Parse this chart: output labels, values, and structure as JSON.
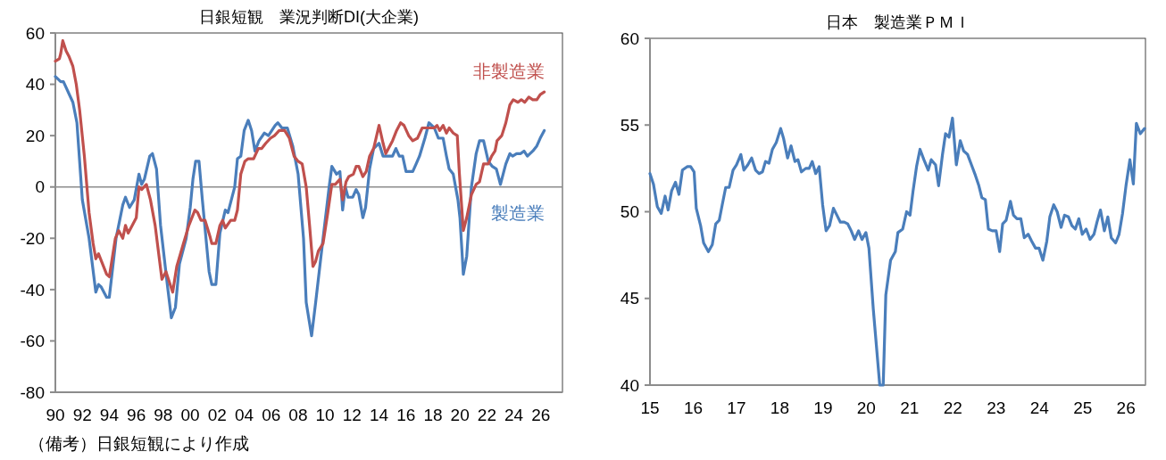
{
  "chart_data": [
    {
      "type": "line",
      "title": "日銀短観　業況判断DI(大企業)",
      "xlim": [
        1990,
        2027.6
      ],
      "ylim": [
        -80,
        60
      ],
      "xticks": [
        {
          "value": 1990,
          "label": "90"
        },
        {
          "value": 1992,
          "label": "92"
        },
        {
          "value": 1994,
          "label": "94"
        },
        {
          "value": 1996,
          "label": "96"
        },
        {
          "value": 1998,
          "label": "98"
        },
        {
          "value": 2000,
          "label": "00"
        },
        {
          "value": 2002,
          "label": "02"
        },
        {
          "value": 2004,
          "label": "04"
        },
        {
          "value": 2006,
          "label": "06"
        },
        {
          "value": 2008,
          "label": "08"
        },
        {
          "value": 2010,
          "label": "10"
        },
        {
          "value": 2012,
          "label": "12"
        },
        {
          "value": 2014,
          "label": "14"
        },
        {
          "value": 2016,
          "label": "16"
        },
        {
          "value": 2018,
          "label": "18"
        },
        {
          "value": 2020,
          "label": "20"
        },
        {
          "value": 2022,
          "label": "22"
        },
        {
          "value": 2024,
          "label": "24"
        },
        {
          "value": 2026,
          "label": "26"
        }
      ],
      "yticks": [
        -80,
        -60,
        -40,
        -20,
        0,
        20,
        40,
        60
      ],
      "grid": false,
      "legend": false,
      "marker": "none",
      "line_style": "solid",
      "ref_lines": [
        {
          "axis": "y",
          "value": 0,
          "color": "#8c8c8c"
        }
      ],
      "annotations": [
        "（備考）日銀短観により作成"
      ],
      "series": [
        {
          "name": "製造業",
          "color": "#4a7ebb",
          "x": [
            1990.0,
            1990.4,
            1990.6,
            1991.3,
            1991.6,
            1992.0,
            1992.5,
            1993.0,
            1993.2,
            1993.4,
            1993.8,
            1994.0,
            1994.5,
            1995.0,
            1995.2,
            1995.5,
            1995.85,
            1996.2,
            1996.4,
            1996.6,
            1997.0,
            1997.2,
            1997.5,
            1997.8,
            1998.3,
            1998.6,
            1998.9,
            1999.2,
            1999.7,
            2000.0,
            2000.2,
            2000.4,
            2000.65,
            2000.9,
            2001.4,
            2001.6,
            2001.9,
            2002.2,
            2002.6,
            2002.8,
            2003.3,
            2003.5,
            2003.75,
            2004.0,
            2004.3,
            2004.55,
            2004.8,
            2005.1,
            2005.5,
            2005.8,
            2006.3,
            2006.5,
            2006.8,
            2007.2,
            2007.6,
            2008.0,
            2008.4,
            2008.6,
            2009.0,
            2009.3,
            2009.85,
            2010.3,
            2010.5,
            2010.85,
            2011.1,
            2011.3,
            2011.5,
            2011.7,
            2012.05,
            2012.3,
            2012.5,
            2012.8,
            2013.0,
            2013.3,
            2013.6,
            2014.0,
            2014.3,
            2014.6,
            2015.0,
            2015.25,
            2015.5,
            2015.75,
            2016.0,
            2016.5,
            2016.75,
            2017.0,
            2017.4,
            2017.7,
            2018.1,
            2018.4,
            2018.75,
            2019.0,
            2019.2,
            2019.5,
            2019.85,
            2020.0,
            2020.25,
            2020.5,
            2020.85,
            2021.2,
            2021.45,
            2021.75,
            2022.1,
            2022.4,
            2022.7,
            2023.0,
            2023.4,
            2023.7,
            2023.9,
            2024.2,
            2024.5,
            2024.75,
            2025.0,
            2025.4,
            2025.7,
            2025.95,
            2026.25
          ],
          "values": [
            43,
            41,
            41,
            33,
            25,
            -5,
            -20,
            -41,
            -38,
            -39,
            -43,
            -43,
            -20,
            -7,
            -4,
            -8,
            -5,
            5,
            1,
            3,
            12,
            13,
            7,
            -15,
            -38,
            -51,
            -47,
            -30,
            -20,
            -8,
            3,
            10,
            10,
            -5,
            -33,
            -38,
            -38,
            -18,
            -9,
            -10,
            0,
            11,
            12,
            22,
            26,
            22,
            14,
            18,
            21,
            20,
            24,
            25,
            23,
            23,
            16,
            5,
            -20,
            -45,
            -58,
            -45,
            -20,
            0,
            8,
            5,
            6,
            -9,
            0,
            -4,
            -4,
            -1,
            -3,
            -12,
            -8,
            7,
            15,
            17,
            12,
            12,
            12,
            15,
            12,
            12,
            6,
            6,
            9,
            12,
            19,
            25,
            23,
            19,
            19,
            12,
            7,
            5,
            -5,
            -12,
            -34,
            -27,
            0,
            13,
            18,
            18,
            10,
            8,
            7,
            1,
            9,
            13,
            12,
            13,
            13,
            14,
            12,
            14,
            16,
            19,
            22
          ]
        },
        {
          "name": "非製造業",
          "color": "#c0504d",
          "x": [
            1990.0,
            1990.3,
            1990.4,
            1990.55,
            1990.8,
            1991.0,
            1991.3,
            1991.55,
            1991.8,
            1992.15,
            1992.5,
            1992.8,
            1993.0,
            1993.2,
            1993.5,
            1993.8,
            1994.0,
            1994.45,
            1994.7,
            1995.0,
            1995.2,
            1995.4,
            1996.0,
            1996.2,
            1996.4,
            1996.75,
            1997.05,
            1997.4,
            1997.9,
            1998.2,
            1998.7,
            1999.0,
            1999.5,
            1999.9,
            2000.35,
            2000.55,
            2000.8,
            2001.1,
            2001.45,
            2001.6,
            2001.9,
            2002.2,
            2002.4,
            2002.6,
            2003.0,
            2003.3,
            2003.5,
            2003.75,
            2004.05,
            2004.3,
            2004.7,
            2005.05,
            2005.3,
            2005.6,
            2005.95,
            2006.25,
            2006.6,
            2007.0,
            2007.35,
            2007.7,
            2008.0,
            2008.3,
            2008.6,
            2008.85,
            2009.1,
            2009.3,
            2009.5,
            2009.85,
            2010.2,
            2010.5,
            2010.75,
            2011.1,
            2011.3,
            2011.55,
            2011.75,
            2012.1,
            2012.3,
            2012.5,
            2012.8,
            2013.05,
            2013.3,
            2013.6,
            2014.0,
            2014.3,
            2014.5,
            2015.0,
            2015.3,
            2015.6,
            2015.85,
            2016.2,
            2016.5,
            2016.85,
            2017.2,
            2017.6,
            2018.1,
            2018.3,
            2018.5,
            2018.75,
            2019.0,
            2019.2,
            2019.5,
            2019.8,
            2019.96,
            2020.25,
            2020.5,
            2020.85,
            2021.2,
            2021.45,
            2021.75,
            2022.1,
            2022.35,
            2022.6,
            2022.75,
            2023.1,
            2023.4,
            2023.7,
            2023.95,
            2024.3,
            2024.55,
            2024.8,
            2025.1,
            2025.4,
            2025.7,
            2025.95,
            2026.25
          ],
          "values": [
            49,
            50,
            52,
            57,
            53,
            51,
            47,
            40,
            30,
            12,
            -10,
            -22,
            -28,
            -26,
            -30,
            -34,
            -35,
            -20,
            -17,
            -20,
            -15,
            -18,
            -12,
            0,
            -1,
            1,
            -5,
            -15,
            -36,
            -33,
            -41,
            -31,
            -22,
            -15,
            -9,
            -10,
            -13,
            -13,
            -19,
            -22,
            -22,
            -15,
            -13,
            -16,
            -13,
            -13,
            -9,
            5,
            10,
            11,
            11,
            15,
            15,
            17,
            19,
            20,
            22,
            22,
            19,
            12,
            10,
            9,
            0,
            -15,
            -31,
            -29,
            -25,
            -22,
            -10,
            1,
            1,
            3,
            -5,
            2,
            4,
            5,
            8,
            8,
            4,
            6,
            12,
            15,
            24,
            17,
            13,
            18,
            22,
            25,
            24,
            20,
            18,
            19,
            23,
            23,
            23,
            24,
            22,
            24,
            21,
            23,
            21,
            20,
            5,
            -17,
            -12,
            -3,
            1,
            2,
            9,
            9,
            12,
            14,
            18,
            20,
            25,
            32,
            34,
            33,
            34,
            33,
            35,
            34,
            34,
            36,
            37
          ]
        }
      ]
    },
    {
      "type": "line",
      "title": "日本　製造業ＰＭＩ",
      "xlim": [
        2015,
        2026.45
      ],
      "ylim": [
        40,
        60
      ],
      "xticks": [
        {
          "value": 2015,
          "label": "15"
        },
        {
          "value": 2016,
          "label": "16"
        },
        {
          "value": 2017,
          "label": "17"
        },
        {
          "value": 2018,
          "label": "18"
        },
        {
          "value": 2019,
          "label": "19"
        },
        {
          "value": 2020,
          "label": "20"
        },
        {
          "value": 2021,
          "label": "21"
        },
        {
          "value": 2022,
          "label": "22"
        },
        {
          "value": 2023,
          "label": "23"
        },
        {
          "value": 2024,
          "label": "24"
        },
        {
          "value": 2025,
          "label": "25"
        },
        {
          "value": 2026,
          "label": "26"
        }
      ],
      "yticks": [
        40,
        45,
        50,
        55,
        60
      ],
      "grid": false,
      "legend": false,
      "marker": "none",
      "line_style": "solid",
      "series": [
        {
          "color": "#4a7ebb",
          "x": [
            2015.0,
            2015.08,
            2015.17,
            2015.26,
            2015.35,
            2015.42,
            2015.5,
            2015.59,
            2015.67,
            2015.75,
            2015.86,
            2015.94,
            2016.02,
            2016.07,
            2016.17,
            2016.24,
            2016.35,
            2016.44,
            2016.52,
            2016.6,
            2016.67,
            2016.75,
            2016.83,
            2016.92,
            2017.0,
            2017.1,
            2017.17,
            2017.26,
            2017.35,
            2017.44,
            2017.52,
            2017.6,
            2017.67,
            2017.75,
            2017.83,
            2017.92,
            2018.02,
            2018.09,
            2018.18,
            2018.26,
            2018.35,
            2018.42,
            2018.5,
            2018.6,
            2018.68,
            2018.75,
            2018.83,
            2018.91,
            2018.99,
            2019.07,
            2019.15,
            2019.24,
            2019.32,
            2019.4,
            2019.49,
            2019.57,
            2019.65,
            2019.73,
            2019.82,
            2019.9,
            2019.99,
            2020.06,
            2020.16,
            2020.31,
            2020.39,
            2020.45,
            2020.56,
            2020.67,
            2020.73,
            2020.84,
            2020.93,
            2021.01,
            2021.08,
            2021.16,
            2021.24,
            2021.33,
            2021.43,
            2021.5,
            2021.6,
            2021.67,
            2021.76,
            2021.83,
            2021.91,
            2021.99,
            2022.08,
            2022.17,
            2022.25,
            2022.34,
            2022.43,
            2022.52,
            2022.6,
            2022.67,
            2022.75,
            2022.82,
            2022.91,
            2023.0,
            2023.08,
            2023.15,
            2023.23,
            2023.33,
            2023.4,
            2023.48,
            2023.57,
            2023.65,
            2023.74,
            2023.82,
            2023.91,
            2023.99,
            2024.08,
            2024.17,
            2024.24,
            2024.33,
            2024.41,
            2024.5,
            2024.58,
            2024.67,
            2024.75,
            2024.83,
            2024.91,
            2024.99,
            2025.08,
            2025.17,
            2025.26,
            2025.33,
            2025.41,
            2025.5,
            2025.58,
            2025.66,
            2025.76,
            2025.84,
            2025.92,
            2026.0,
            2026.09,
            2026.17,
            2026.24,
            2026.33,
            2026.43
          ],
          "values": [
            52.2,
            51.6,
            50.3,
            49.9,
            50.9,
            50.1,
            51.2,
            51.7,
            51.0,
            52.4,
            52.6,
            52.6,
            52.3,
            50.2,
            49.2,
            48.2,
            47.7,
            48.1,
            49.3,
            49.5,
            50.4,
            51.4,
            51.4,
            52.4,
            52.7,
            53.3,
            52.4,
            52.7,
            53.1,
            52.4,
            52.2,
            52.3,
            52.9,
            52.8,
            53.6,
            54.0,
            54.8,
            54.2,
            53.1,
            53.8,
            52.9,
            53.0,
            52.3,
            52.5,
            52.5,
            52.9,
            52.2,
            52.6,
            50.4,
            48.9,
            49.2,
            50.2,
            49.8,
            49.4,
            49.4,
            49.3,
            48.9,
            48.4,
            48.9,
            48.4,
            48.8,
            47.9,
            44.4,
            40.0,
            40.0,
            45.2,
            47.2,
            47.7,
            48.8,
            49.0,
            50.0,
            49.8,
            51.2,
            52.6,
            53.6,
            53.0,
            52.4,
            53.0,
            52.7,
            51.5,
            53.3,
            54.5,
            54.3,
            55.4,
            52.7,
            54.1,
            53.5,
            53.3,
            52.7,
            52.1,
            51.5,
            50.8,
            50.7,
            49.0,
            48.9,
            48.9,
            47.7,
            49.3,
            49.5,
            50.6,
            49.8,
            49.6,
            49.6,
            48.5,
            48.7,
            48.3,
            47.9,
            47.9,
            47.2,
            48.3,
            49.7,
            50.4,
            50.0,
            49.1,
            49.8,
            49.7,
            49.2,
            49.0,
            49.6,
            48.7,
            49.0,
            48.4,
            48.7,
            49.4,
            50.1,
            48.9,
            49.7,
            48.5,
            48.2,
            48.7,
            49.9,
            51.5,
            53.0,
            51.6,
            55.1,
            54.5,
            54.8
          ]
        }
      ]
    }
  ]
}
